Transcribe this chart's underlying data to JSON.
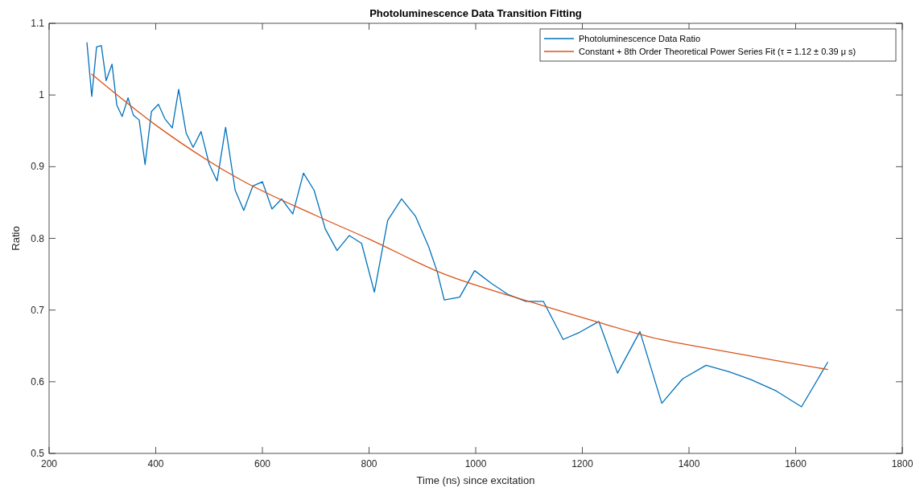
{
  "chart_data": {
    "type": "line",
    "title": "Photoluminescence Data Transition Fitting",
    "xlabel": "Time (ns) since excitation",
    "ylabel": "Ratio",
    "xlim": [
      200,
      1800
    ],
    "xticks": [
      200,
      400,
      600,
      800,
      1000,
      1200,
      1400,
      1600,
      1800
    ],
    "ylim": [
      0.5,
      1.1
    ],
    "yticks": [
      0.5,
      0.6,
      0.7,
      0.8,
      0.9,
      1,
      1.1
    ],
    "grid": false,
    "legend": "top right",
    "series": [
      {
        "name": "Photoluminescence Data Ratio",
        "color": "#0072bd",
        "x": [
          271,
          280,
          289,
          298,
          307,
          318,
          327,
          337,
          348,
          358,
          369,
          380,
          392,
          405,
          417,
          431,
          443,
          457,
          470,
          485,
          500,
          515,
          531,
          549,
          565,
          582,
          600,
          618,
          636,
          657,
          677,
          697,
          718,
          740,
          763,
          786,
          810,
          835,
          861,
          887,
          912,
          928,
          941,
          970,
          998,
          1030,
          1060,
          1094,
          1127,
          1164,
          1195,
          1231,
          1266,
          1308,
          1349,
          1388,
          1432,
          1475,
          1516,
          1564,
          1611,
          1660
        ],
        "values": [
          1.073,
          0.998,
          1.067,
          1.069,
          1.02,
          1.043,
          0.986,
          0.97,
          0.996,
          0.972,
          0.965,
          0.903,
          0.977,
          0.987,
          0.967,
          0.954,
          1.008,
          0.947,
          0.927,
          0.949,
          0.904,
          0.88,
          0.955,
          0.867,
          0.839,
          0.873,
          0.879,
          0.841,
          0.855,
          0.834,
          0.891,
          0.867,
          0.813,
          0.783,
          0.804,
          0.793,
          0.725,
          0.825,
          0.855,
          0.831,
          0.788,
          0.753,
          0.714,
          0.718,
          0.755,
          0.737,
          0.722,
          0.712,
          0.712,
          0.659,
          0.669,
          0.684,
          0.612,
          0.67,
          0.57,
          0.604,
          0.623,
          0.614,
          0.603,
          0.587,
          0.565,
          0.627
        ]
      },
      {
        "name": "Constant + 8th Order Theoretical Power Series Fit (τ = 1.12 ± 0.39 μ s)",
        "color": "#d95319",
        "x": [
          280,
          400,
          561,
          700,
          800,
          938,
          1100,
          1225,
          1346,
          1432,
          1560,
          1660
        ],
        "values": [
          1.029,
          0.958,
          0.881,
          0.832,
          0.799,
          0.751,
          0.712,
          0.684,
          0.659,
          0.647,
          0.63,
          0.617
        ]
      }
    ]
  }
}
